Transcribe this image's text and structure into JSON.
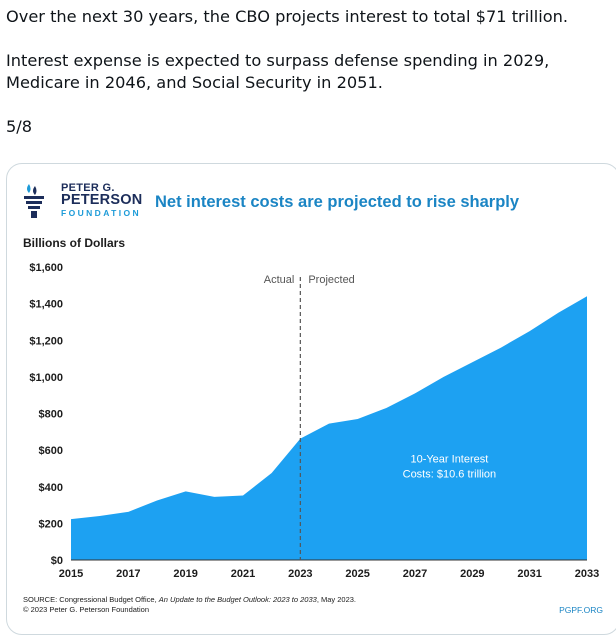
{
  "tweet": {
    "line1": "Over the next 30 years, the CBO projects interest to total $71 trillion.",
    "line2": "Interest expense is expected to surpass defense spending in 2029,",
    "line3": "Medicare in 2046, and Social Security in 2051.",
    "page_counter": "5/8"
  },
  "logo": {
    "line1": "PETER G.",
    "line2": "PETERSON",
    "line3": "FOUNDATION"
  },
  "footer": {
    "source_prefix": "SOURCE: Congressional Budget Office, ",
    "source_title": "An Update to the Budget Outlook: 2023 to 2033",
    "source_suffix": ", May 2023.",
    "copyright": "© 2023 Peter G. Peterson Foundation",
    "site": "PGPF.ORG"
  },
  "colors": {
    "area": "#1da1f2",
    "title": "#1b85c4",
    "divider": "#555555"
  },
  "chart_data": {
    "type": "area",
    "title": "Net interest costs are projected to rise sharply",
    "ylabel": "Billions of Dollars",
    "xlabel": "",
    "x": [
      2015,
      2016,
      2017,
      2018,
      2019,
      2020,
      2021,
      2022,
      2023,
      2024,
      2025,
      2026,
      2027,
      2028,
      2029,
      2030,
      2031,
      2032,
      2033
    ],
    "values": [
      223,
      240,
      263,
      325,
      375,
      345,
      352,
      475,
      663,
      745,
      770,
      830,
      910,
      1000,
      1080,
      1160,
      1250,
      1350,
      1440
    ],
    "ylim": [
      0,
      1600
    ],
    "yticks": [
      0,
      200,
      400,
      600,
      800,
      1000,
      1200,
      1400,
      1600
    ],
    "ytick_labels": [
      "$0",
      "$200",
      "$400",
      "$600",
      "$800",
      "$1,000",
      "$1,200",
      "$1,400",
      "$1,600"
    ],
    "xticks": [
      2015,
      2017,
      2019,
      2021,
      2023,
      2025,
      2027,
      2029,
      2031,
      2033
    ],
    "xtick_labels": [
      "2015",
      "2017",
      "2019",
      "2021",
      "2023",
      "2025",
      "2027",
      "2029",
      "2031",
      "2033"
    ],
    "divider_x": 2023,
    "divider_left_label": "Actual",
    "divider_right_label": "Projected",
    "annotation_line1": "10-Year Interest",
    "annotation_line2": "Costs: $10.6 trillion",
    "grid": false
  }
}
